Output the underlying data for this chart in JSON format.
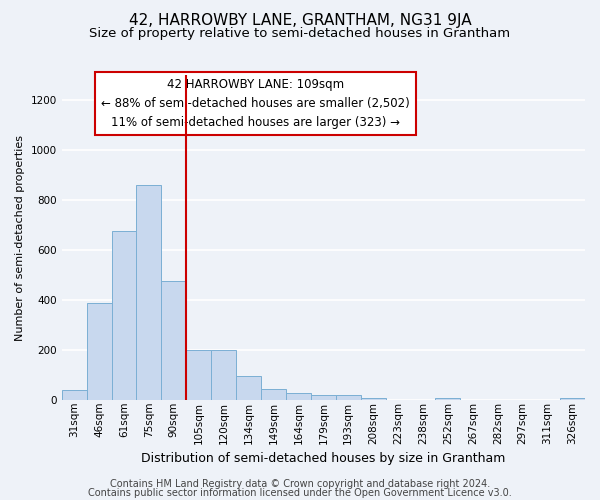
{
  "title": "42, HARROWBY LANE, GRANTHAM, NG31 9JA",
  "subtitle": "Size of property relative to semi-detached houses in Grantham",
  "xlabel": "Distribution of semi-detached houses by size in Grantham",
  "ylabel": "Number of semi-detached properties",
  "bin_labels": [
    "31sqm",
    "46sqm",
    "61sqm",
    "75sqm",
    "90sqm",
    "105sqm",
    "120sqm",
    "134sqm",
    "149sqm",
    "164sqm",
    "179sqm",
    "193sqm",
    "208sqm",
    "223sqm",
    "238sqm",
    "252sqm",
    "267sqm",
    "282sqm",
    "297sqm",
    "311sqm",
    "326sqm"
  ],
  "bar_values": [
    42,
    390,
    675,
    860,
    475,
    200,
    200,
    95,
    45,
    30,
    22,
    20,
    10,
    2,
    2,
    10,
    2,
    2,
    2,
    2,
    10
  ],
  "bar_color": "#c8d8ee",
  "bar_edge_color": "#7bafd4",
  "vline_position": 5.0,
  "vline_color": "#cc0000",
  "annotation_line1": "42 HARROWBY LANE: 109sqm",
  "annotation_line2": "← 88% of semi-detached houses are smaller (2,502)",
  "annotation_line3": "11% of semi-detached houses are larger (323) →",
  "annotation_box_color": "#ffffff",
  "annotation_box_edge_color": "#cc0000",
  "ylim": [
    0,
    1300
  ],
  "yticks": [
    0,
    200,
    400,
    600,
    800,
    1000,
    1200
  ],
  "footer_line1": "Contains HM Land Registry data © Crown copyright and database right 2024.",
  "footer_line2": "Contains public sector information licensed under the Open Government Licence v3.0.",
  "background_color": "#eef2f8",
  "grid_color": "#ffffff",
  "title_fontsize": 11,
  "subtitle_fontsize": 9.5,
  "xlabel_fontsize": 9,
  "ylabel_fontsize": 8,
  "tick_fontsize": 7.5,
  "annotation_fontsize": 8.5,
  "footer_fontsize": 7
}
